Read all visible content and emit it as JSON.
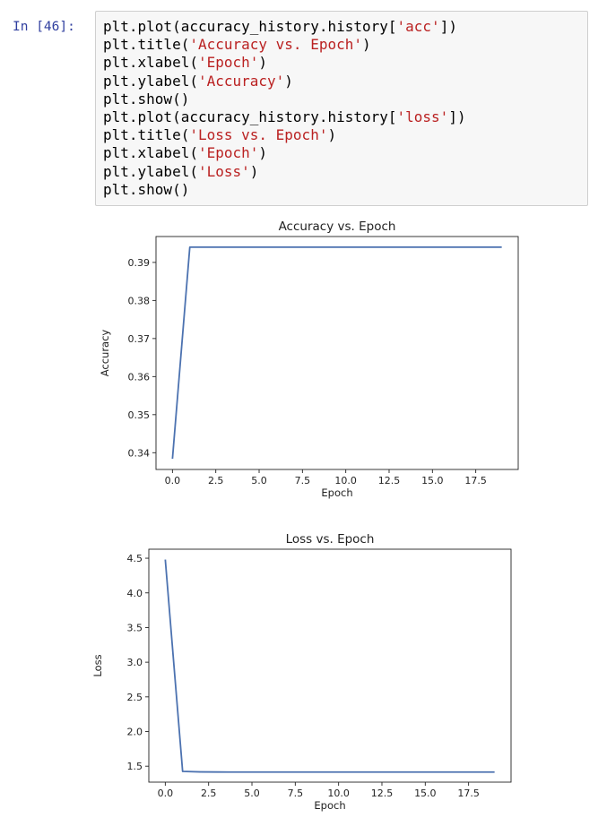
{
  "cell": {
    "prompt": "In [46]:",
    "code_lines": [
      {
        "pre": "plt.plot(accuracy_history.history[",
        "str": "'acc'",
        "post": "])"
      },
      {
        "pre": "plt.title(",
        "str": "'Accuracy vs. Epoch'",
        "post": ")"
      },
      {
        "pre": "plt.xlabel(",
        "str": "'Epoch'",
        "post": ")"
      },
      {
        "pre": "plt.ylabel(",
        "str": "'Accuracy'",
        "post": ")"
      },
      {
        "pre": "plt.show()",
        "str": "",
        "post": ""
      },
      {
        "pre": "plt.plot(accuracy_history.history[",
        "str": "'loss'",
        "post": "])"
      },
      {
        "pre": "plt.title(",
        "str": "'Loss vs. Epoch'",
        "post": ")"
      },
      {
        "pre": "plt.xlabel(",
        "str": "'Epoch'",
        "post": ")"
      },
      {
        "pre": "plt.ylabel(",
        "str": "'Loss'",
        "post": ")"
      },
      {
        "pre": "plt.show()",
        "str": "",
        "post": ""
      }
    ]
  },
  "colors": {
    "line": "#4c72b0",
    "string": "#ba2121",
    "prompt": "#303f9f"
  },
  "chart_data": [
    {
      "type": "line",
      "title": "Accuracy vs. Epoch",
      "xlabel": "Epoch",
      "ylabel": "Accuracy",
      "x": [
        0,
        1,
        2,
        3,
        4,
        5,
        6,
        7,
        8,
        9,
        10,
        11,
        12,
        13,
        14,
        15,
        16,
        17,
        18,
        19
      ],
      "values": [
        0.3384,
        0.394,
        0.394,
        0.394,
        0.394,
        0.394,
        0.394,
        0.394,
        0.394,
        0.394,
        0.394,
        0.394,
        0.394,
        0.394,
        0.394,
        0.394,
        0.394,
        0.394,
        0.394,
        0.394
      ],
      "xticks": [
        0.0,
        2.5,
        5.0,
        7.5,
        10.0,
        12.5,
        15.0,
        17.5
      ],
      "xtick_labels": [
        "0.0",
        "2.5",
        "5.0",
        "7.5",
        "10.0",
        "12.5",
        "15.0",
        "17.5"
      ],
      "yticks": [
        0.34,
        0.35,
        0.36,
        0.37,
        0.38,
        0.39
      ],
      "ytick_labels": [
        "0.34",
        "0.35",
        "0.36",
        "0.37",
        "0.38",
        "0.39"
      ],
      "xlim": [
        -0.95,
        19.95
      ],
      "ylim": [
        0.3356,
        0.3968
      ],
      "grid": false
    },
    {
      "type": "line",
      "title": "Loss vs. Epoch",
      "xlabel": "Epoch",
      "ylabel": "Loss",
      "x": [
        0,
        1,
        2,
        3,
        4,
        5,
        6,
        7,
        8,
        9,
        10,
        11,
        12,
        13,
        14,
        15,
        16,
        17,
        18,
        19
      ],
      "values": [
        4.48,
        1.425,
        1.418,
        1.416,
        1.415,
        1.415,
        1.415,
        1.415,
        1.415,
        1.415,
        1.415,
        1.415,
        1.415,
        1.415,
        1.415,
        1.415,
        1.415,
        1.415,
        1.415,
        1.415
      ],
      "xticks": [
        0.0,
        2.5,
        5.0,
        7.5,
        10.0,
        12.5,
        15.0,
        17.5
      ],
      "xtick_labels": [
        "0.0",
        "2.5",
        "5.0",
        "7.5",
        "10.0",
        "12.5",
        "15.0",
        "17.5"
      ],
      "yticks": [
        1.5,
        2.0,
        2.5,
        3.0,
        3.5,
        4.0,
        4.5
      ],
      "ytick_labels": [
        "1.5",
        "2.0",
        "2.5",
        "3.0",
        "3.5",
        "4.0",
        "4.5"
      ],
      "xlim": [
        -0.95,
        19.95
      ],
      "ylim": [
        1.27,
        4.63
      ],
      "grid": false
    }
  ]
}
